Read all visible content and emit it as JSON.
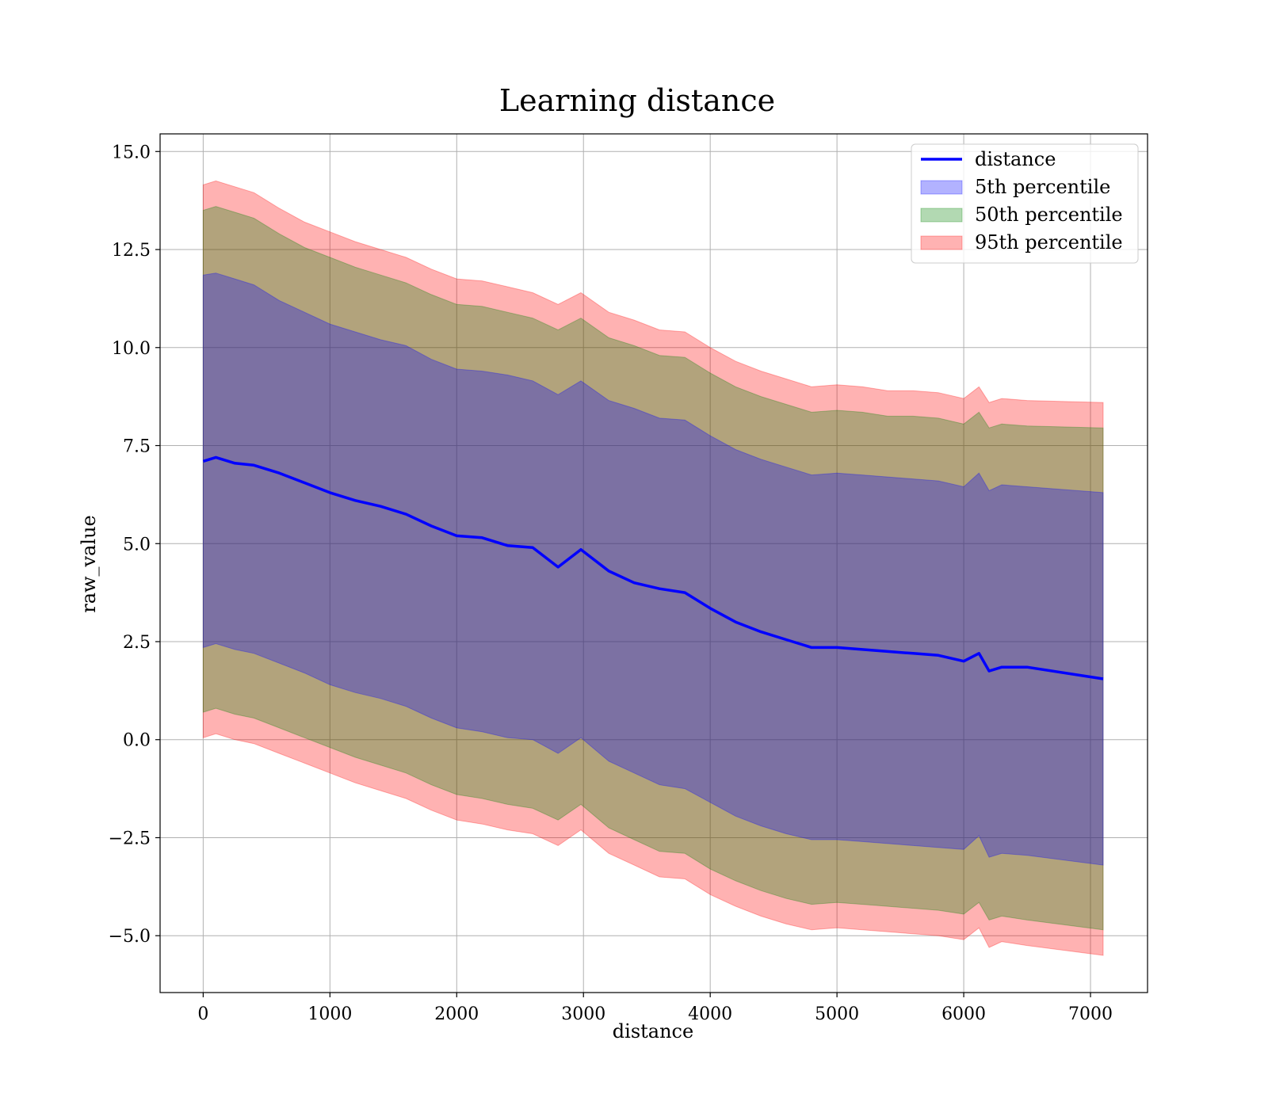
{
  "chart_data": {
    "type": "area",
    "title": "Learning distance",
    "xlabel": "distance",
    "ylabel": "raw_value",
    "xlim": [
      -340,
      7450
    ],
    "ylim": [
      -6.45,
      15.45
    ],
    "xticks": [
      0,
      1000,
      2000,
      3000,
      4000,
      5000,
      6000,
      7000
    ],
    "xtick_labels": [
      "0",
      "1000",
      "2000",
      "3000",
      "4000",
      "5000",
      "6000",
      "7000"
    ],
    "yticks": [
      -5.0,
      -2.5,
      0.0,
      2.5,
      5.0,
      7.5,
      10.0,
      12.5,
      15.0
    ],
    "ytick_labels": [
      "−5.0",
      "−2.5",
      "0.0",
      "2.5",
      "5.0",
      "7.5",
      "10.0",
      "12.5",
      "15.0"
    ],
    "grid": true,
    "legend_position": "top-right",
    "x": [
      0,
      100,
      250,
      400,
      600,
      800,
      1000,
      1200,
      1400,
      1600,
      1800,
      2000,
      2200,
      2400,
      2600,
      2800,
      2980,
      3200,
      3400,
      3600,
      3800,
      4000,
      4200,
      4400,
      4600,
      4800,
      5000,
      5200,
      5400,
      5600,
      5800,
      6000,
      6120,
      6200,
      6300,
      6500,
      7100
    ],
    "series": [
      {
        "name": "distance",
        "kind": "line",
        "color": "#0000ff",
        "values": [
          7.1,
          7.2,
          7.05,
          7.0,
          6.8,
          6.55,
          6.3,
          6.1,
          5.95,
          5.75,
          5.45,
          5.2,
          5.15,
          4.95,
          4.9,
          4.4,
          4.85,
          4.3,
          4.0,
          3.85,
          3.75,
          3.35,
          3.0,
          2.75,
          2.55,
          2.35,
          2.35,
          2.3,
          2.25,
          2.2,
          2.15,
          2.0,
          2.2,
          1.75,
          1.85,
          1.85,
          1.55
        ]
      },
      {
        "name": "5th percentile",
        "kind": "band",
        "color": "#0000ff",
        "opacity": 0.3,
        "upper": [
          11.85,
          11.9,
          11.75,
          11.6,
          11.2,
          10.9,
          10.6,
          10.4,
          10.2,
          10.05,
          9.7,
          9.45,
          9.4,
          9.3,
          9.15,
          8.8,
          9.15,
          8.65,
          8.45,
          8.2,
          8.15,
          7.75,
          7.4,
          7.15,
          6.95,
          6.75,
          6.8,
          6.75,
          6.7,
          6.65,
          6.6,
          6.45,
          6.8,
          6.35,
          6.5,
          6.45,
          6.3
        ],
        "lower": [
          2.35,
          2.45,
          2.3,
          2.2,
          1.95,
          1.7,
          1.4,
          1.2,
          1.05,
          0.85,
          0.55,
          0.3,
          0.2,
          0.05,
          0.0,
          -0.35,
          0.05,
          -0.55,
          -0.85,
          -1.15,
          -1.25,
          -1.6,
          -1.95,
          -2.2,
          -2.4,
          -2.55,
          -2.55,
          -2.6,
          -2.65,
          -2.7,
          -2.75,
          -2.8,
          -2.45,
          -3.0,
          -2.9,
          -2.95,
          -3.2
        ]
      },
      {
        "name": "50th percentile",
        "kind": "band",
        "color": "#008000",
        "opacity": 0.3,
        "upper": [
          13.5,
          13.6,
          13.45,
          13.3,
          12.9,
          12.55,
          12.3,
          12.05,
          11.85,
          11.65,
          11.35,
          11.1,
          11.05,
          10.9,
          10.75,
          10.45,
          10.75,
          10.25,
          10.05,
          9.8,
          9.75,
          9.35,
          9.0,
          8.75,
          8.55,
          8.35,
          8.4,
          8.35,
          8.25,
          8.25,
          8.2,
          8.05,
          8.35,
          7.95,
          8.05,
          8.0,
          7.95
        ],
        "lower": [
          0.7,
          0.8,
          0.65,
          0.55,
          0.3,
          0.05,
          -0.2,
          -0.45,
          -0.65,
          -0.85,
          -1.15,
          -1.4,
          -1.5,
          -1.65,
          -1.75,
          -2.05,
          -1.65,
          -2.25,
          -2.55,
          -2.85,
          -2.9,
          -3.3,
          -3.6,
          -3.85,
          -4.05,
          -4.2,
          -4.15,
          -4.2,
          -4.25,
          -4.3,
          -4.35,
          -4.45,
          -4.15,
          -4.6,
          -4.5,
          -4.6,
          -4.85
        ]
      },
      {
        "name": "95th percentile",
        "kind": "band",
        "color": "#ff0000",
        "opacity": 0.3,
        "upper": [
          14.15,
          14.25,
          14.1,
          13.95,
          13.55,
          13.2,
          12.95,
          12.7,
          12.5,
          12.3,
          12.0,
          11.75,
          11.7,
          11.55,
          11.4,
          11.1,
          11.4,
          10.9,
          10.7,
          10.45,
          10.4,
          10.0,
          9.65,
          9.4,
          9.2,
          9.0,
          9.05,
          9.0,
          8.9,
          8.9,
          8.85,
          8.7,
          9.0,
          8.6,
          8.7,
          8.65,
          8.6
        ],
        "lower": [
          0.05,
          0.15,
          0.0,
          -0.1,
          -0.35,
          -0.6,
          -0.85,
          -1.1,
          -1.3,
          -1.5,
          -1.8,
          -2.05,
          -2.15,
          -2.3,
          -2.4,
          -2.7,
          -2.3,
          -2.9,
          -3.2,
          -3.5,
          -3.55,
          -3.95,
          -4.25,
          -4.5,
          -4.7,
          -4.85,
          -4.8,
          -4.85,
          -4.9,
          -4.95,
          -5.0,
          -5.1,
          -4.8,
          -5.3,
          -5.15,
          -5.25,
          -5.5
        ]
      }
    ]
  }
}
